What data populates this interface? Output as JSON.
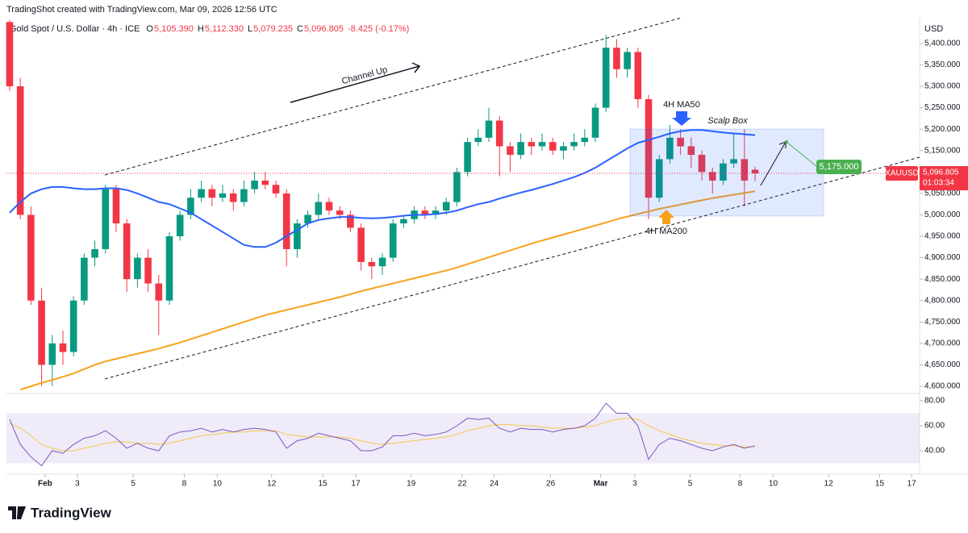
{
  "header": {
    "credit": "TradingShot created with TradingView.com, Mar 09, 2026 12:56 UTC",
    "brand": "TradingView"
  },
  "chart_data": {
    "type": "candlestick",
    "symbol": "Gold Spot / U.S. Dollar · 4h · ICE",
    "ohlc_legend": [
      [
        "O",
        "5,105.390"
      ],
      [
        "H",
        "5,112.330"
      ],
      [
        "L",
        "5,079.235"
      ],
      [
        "C",
        "5,096.805"
      ]
    ],
    "change": "-8.425 (-0.17%)",
    "currency": "USD",
    "ticker": "XAUUSD",
    "last_price_label": "5,096.805",
    "countdown": "01:03:34",
    "up_color": "#089981",
    "down_color": "#f23645",
    "ohlc": [
      [
        5450,
        5455,
        5290,
        5300
      ],
      [
        5300,
        5320,
        4990,
        5000
      ],
      [
        5000,
        5020,
        4790,
        4800
      ],
      [
        4800,
        4830,
        4600,
        4650
      ],
      [
        4650,
        4720,
        4600,
        4700
      ],
      [
        4700,
        4730,
        4650,
        4680
      ],
      [
        4680,
        4810,
        4670,
        4800
      ],
      [
        4800,
        4910,
        4790,
        4900
      ],
      [
        4900,
        4940,
        4880,
        4920
      ],
      [
        4920,
        5070,
        4910,
        5060
      ],
      [
        5060,
        5070,
        4960,
        4980
      ],
      [
        4980,
        4990,
        4820,
        4850
      ],
      [
        4850,
        4910,
        4830,
        4900
      ],
      [
        4900,
        4920,
        4820,
        4840
      ],
      [
        4840,
        4860,
        4720,
        4800
      ],
      [
        4800,
        4960,
        4790,
        4950
      ],
      [
        4950,
        5010,
        4940,
        5000
      ],
      [
        5000,
        5060,
        4990,
        5040
      ],
      [
        5040,
        5080,
        5030,
        5060
      ],
      [
        5060,
        5070,
        5020,
        5040
      ],
      [
        5040,
        5070,
        5030,
        5050
      ],
      [
        5050,
        5060,
        5010,
        5030
      ],
      [
        5030,
        5080,
        5020,
        5060
      ],
      [
        5060,
        5100,
        5050,
        5080
      ],
      [
        5080,
        5100,
        5060,
        5070
      ],
      [
        5070,
        5080,
        5040,
        5050
      ],
      [
        5050,
        5060,
        4880,
        4920
      ],
      [
        4920,
        4990,
        4900,
        4980
      ],
      [
        4980,
        5010,
        4970,
        5000
      ],
      [
        5000,
        5050,
        4990,
        5030
      ],
      [
        5030,
        5040,
        5000,
        5010
      ],
      [
        5010,
        5020,
        4990,
        5000
      ],
      [
        5000,
        5010,
        4960,
        4970
      ],
      [
        4970,
        4980,
        4870,
        4890
      ],
      [
        4890,
        4900,
        4850,
        4880
      ],
      [
        4880,
        4910,
        4860,
        4900
      ],
      [
        4900,
        4990,
        4890,
        4980
      ],
      [
        4980,
        5000,
        4970,
        4990
      ],
      [
        4990,
        5020,
        4980,
        5010
      ],
      [
        5010,
        5020,
        4990,
        5000
      ],
      [
        5000,
        5020,
        4990,
        5010
      ],
      [
        5010,
        5040,
        5000,
        5030
      ],
      [
        5030,
        5110,
        5020,
        5100
      ],
      [
        5100,
        5180,
        5090,
        5170
      ],
      [
        5170,
        5200,
        5160,
        5180
      ],
      [
        5180,
        5250,
        5170,
        5220
      ],
      [
        5220,
        5230,
        5090,
        5160
      ],
      [
        5160,
        5170,
        5100,
        5140
      ],
      [
        5140,
        5190,
        5130,
        5170
      ],
      [
        5170,
        5180,
        5140,
        5160
      ],
      [
        5160,
        5190,
        5150,
        5170
      ],
      [
        5170,
        5180,
        5140,
        5150
      ],
      [
        5150,
        5170,
        5130,
        5160
      ],
      [
        5160,
        5190,
        5150,
        5170
      ],
      [
        5170,
        5200,
        5160,
        5180
      ],
      [
        5180,
        5260,
        5170,
        5250
      ],
      [
        5250,
        5420,
        5240,
        5390
      ],
      [
        5390,
        5410,
        5320,
        5340
      ],
      [
        5340,
        5390,
        5320,
        5380
      ],
      [
        5380,
        5390,
        5250,
        5270
      ],
      [
        5270,
        5280,
        4990,
        5040
      ],
      [
        5040,
        5140,
        5030,
        5130
      ],
      [
        5130,
        5210,
        5120,
        5180
      ],
      [
        5180,
        5200,
        5140,
        5160
      ],
      [
        5160,
        5180,
        5110,
        5140
      ],
      [
        5140,
        5150,
        5080,
        5100
      ],
      [
        5100,
        5110,
        5050,
        5080
      ],
      [
        5080,
        5130,
        5070,
        5120
      ],
      [
        5120,
        5190,
        5110,
        5130
      ],
      [
        5130,
        5200,
        5020,
        5080
      ],
      [
        5105.39,
        5112.33,
        5079.235,
        5096.805
      ]
    ],
    "series": [
      {
        "name": "4H MA50",
        "color": "#2962ff",
        "values": [
          5005,
          5030,
          5050,
          5060,
          5065,
          5065,
          5062,
          5060,
          5060,
          5062,
          5062,
          5058,
          5050,
          5040,
          5030,
          5025,
          5015,
          5005,
          4990,
          4975,
          4960,
          4945,
          4930,
          4925,
          4925,
          4935,
          4950,
          4965,
          4980,
          4988,
          4992,
          4995,
          4995,
          4993,
          4992,
          4993,
          4995,
          4998,
          5000,
          5000,
          5002,
          5005,
          5010,
          5018,
          5025,
          5030,
          5038,
          5045,
          5052,
          5058,
          5065,
          5072,
          5080,
          5088,
          5098,
          5110,
          5125,
          5140,
          5155,
          5168,
          5175,
          5182,
          5190,
          5195,
          5198,
          5198,
          5195,
          5192,
          5190,
          5188,
          5186
        ]
      },
      {
        "name": "4H MA200",
        "color": "#f7a21b",
        "values": [
          null,
          4592,
          4600,
          4608,
          4615,
          4622,
          4630,
          4640,
          4650,
          4658,
          4664,
          4670,
          4676,
          4682,
          4688,
          4695,
          4702,
          4710,
          4718,
          4726,
          4734,
          4742,
          4750,
          4758,
          4766,
          4772,
          4778,
          4784,
          4790,
          4796,
          4802,
          4808,
          4815,
          4822,
          4828,
          4834,
          4840,
          4846,
          4852,
          4858,
          4864,
          4870,
          4877,
          4885,
          4893,
          4901,
          4909,
          4917,
          4925,
          4933,
          4940,
          4947,
          4954,
          4961,
          4968,
          4975,
          4982,
          4990,
          4996,
          5002,
          5008,
          5014,
          5019,
          5024,
          5029,
          5034,
          5039,
          5043,
          5047,
          5051,
          5055
        ]
      }
    ],
    "annotations": {
      "channel": "Channel Up",
      "ma50": "4H MA50",
      "ma200": "4H MA200",
      "box": "Scalp Box",
      "target": "5,175.000"
    },
    "xlim": [
      -0.3,
      85.45
    ],
    "xticks": [
      {
        "value": 3.33,
        "label": "Feb"
      },
      {
        "value": 6.36,
        "label": "3"
      },
      {
        "value": 11.6,
        "label": "5"
      },
      {
        "value": 16.4,
        "label": "8"
      },
      {
        "value": 19.5,
        "label": "10"
      },
      {
        "value": 24.6,
        "label": "12"
      },
      {
        "value": 29.4,
        "label": "15"
      },
      {
        "value": 32.5,
        "label": "17"
      },
      {
        "value": 37.7,
        "label": "19"
      },
      {
        "value": 42.5,
        "label": "22"
      },
      {
        "value": 45.5,
        "label": "24"
      },
      {
        "value": 50.8,
        "label": "26"
      },
      {
        "value": 55.5,
        "label": "Mar"
      },
      {
        "value": 58.7,
        "label": "3"
      },
      {
        "value": 63.9,
        "label": "5"
      },
      {
        "value": 68.6,
        "label": "8"
      },
      {
        "value": 71.7,
        "label": "10"
      },
      {
        "value": 76.9,
        "label": "12"
      },
      {
        "value": 81.7,
        "label": "15"
      },
      {
        "value": 84.7,
        "label": "17"
      }
    ],
    "ylim": [
      4585,
      5460
    ],
    "yticks": [
      {
        "value": 4600,
        "label": "4,600.000"
      },
      {
        "value": 4650,
        "label": "4,650.000"
      },
      {
        "value": 4700,
        "label": "4,700.000"
      },
      {
        "value": 4750,
        "label": "4,750.000"
      },
      {
        "value": 4800,
        "label": "4,800.000"
      },
      {
        "value": 4850,
        "label": "4,850.000"
      },
      {
        "value": 4900,
        "label": "4,900.000"
      },
      {
        "value": 4950,
        "label": "4,950.000"
      },
      {
        "value": 5000,
        "label": "5,000.000"
      },
      {
        "value": 5050,
        "label": "5,050.000"
      },
      {
        "value": 5100,
        "label": "5,100.000"
      },
      {
        "value": 5150,
        "label": "5,150.000"
      },
      {
        "value": 5200,
        "label": "5,200.000"
      },
      {
        "value": 5250,
        "label": "5,250.000"
      },
      {
        "value": 5300,
        "label": "5,300.000"
      },
      {
        "value": 5350,
        "label": "5,350.000"
      },
      {
        "value": 5400,
        "label": "5,400.000"
      }
    ],
    "rsi": {
      "color": "#7e57c2",
      "signal_color": "#f7c948",
      "values": [
        65,
        45,
        35,
        28,
        40,
        38,
        45,
        50,
        52,
        56,
        50,
        42,
        46,
        42,
        40,
        52,
        55,
        56,
        58,
        55,
        57,
        55,
        57,
        58,
        57,
        55,
        42,
        48,
        50,
        54,
        52,
        50,
        48,
        40,
        40,
        43,
        52,
        52,
        54,
        52,
        53,
        55,
        60,
        66,
        65,
        66,
        58,
        55,
        58,
        57,
        57,
        55,
        57,
        58,
        60,
        66,
        78,
        70,
        70,
        60,
        33,
        45,
        50,
        48,
        45,
        42,
        40,
        43,
        45,
        42,
        44
      ],
      "signal": [
        62,
        58,
        52,
        45,
        42,
        40,
        40,
        42,
        44,
        46,
        47,
        47,
        46,
        46,
        45,
        46,
        48,
        50,
        52,
        53,
        54,
        55,
        55,
        56,
        56,
        56,
        53,
        52,
        51,
        51,
        51,
        51,
        50,
        48,
        46,
        45,
        46,
        47,
        48,
        49,
        50,
        51,
        53,
        56,
        58,
        60,
        61,
        61,
        60,
        60,
        59,
        58,
        58,
        58,
        59,
        60,
        63,
        65,
        66,
        65,
        60,
        56,
        53,
        50,
        48,
        46,
        45,
        44,
        44,
        43,
        43
      ],
      "ylim": [
        23.2,
        84.5
      ],
      "band": [
        30,
        70
      ],
      "yticks": [
        {
          "value": 80,
          "label": "80.00"
        },
        {
          "value": 60,
          "label": "60.00"
        },
        {
          "value": 40,
          "label": "40.00"
        }
      ]
    }
  }
}
